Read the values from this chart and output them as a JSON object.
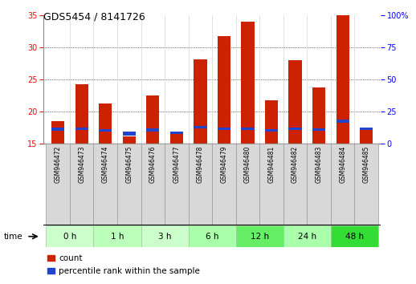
{
  "title": "GDS5454 / 8141726",
  "samples": [
    "GSM946472",
    "GSM946473",
    "GSM946474",
    "GSM946475",
    "GSM946476",
    "GSM946477",
    "GSM946478",
    "GSM946479",
    "GSM946480",
    "GSM946481",
    "GSM946482",
    "GSM946483",
    "GSM946484",
    "GSM946485"
  ],
  "count_values": [
    18.5,
    24.3,
    21.2,
    16.1,
    22.5,
    16.8,
    28.1,
    31.8,
    34.0,
    21.8,
    28.0,
    23.7,
    35.0,
    17.5
  ],
  "percentile_values": [
    17.2,
    17.3,
    17.0,
    16.5,
    17.1,
    16.7,
    17.5,
    17.3,
    17.3,
    17.0,
    17.3,
    17.2,
    18.5,
    17.3
  ],
  "blue_segment_heights": [
    0.5,
    0.4,
    0.4,
    0.6,
    0.4,
    0.35,
    0.4,
    0.4,
    0.4,
    0.4,
    0.4,
    0.4,
    0.6,
    0.4
  ],
  "time_groups": [
    {
      "label": "0 h",
      "indices": [
        0,
        1
      ],
      "color": "#ccffcc"
    },
    {
      "label": "1 h",
      "indices": [
        2,
        3
      ],
      "color": "#bbffbb"
    },
    {
      "label": "3 h",
      "indices": [
        4,
        5
      ],
      "color": "#ccffcc"
    },
    {
      "label": "6 h",
      "indices": [
        6,
        7
      ],
      "color": "#aaffaa"
    },
    {
      "label": "12 h",
      "indices": [
        8,
        9
      ],
      "color": "#66ee66"
    },
    {
      "label": "24 h",
      "indices": [
        10,
        11
      ],
      "color": "#aaffaa"
    },
    {
      "label": "48 h",
      "indices": [
        12,
        13
      ],
      "color": "#33dd33"
    }
  ],
  "y_min": 15,
  "y_max": 35,
  "y_ticks_left": [
    15,
    20,
    25,
    30,
    35
  ],
  "y_right_ticks": [
    0,
    25,
    50,
    75,
    100
  ],
  "bar_color": "#cc2200",
  "blue_color": "#2244cc",
  "bar_width": 0.55,
  "count_label": "count",
  "percentile_label": "percentile rank within the sample",
  "time_label": "time"
}
